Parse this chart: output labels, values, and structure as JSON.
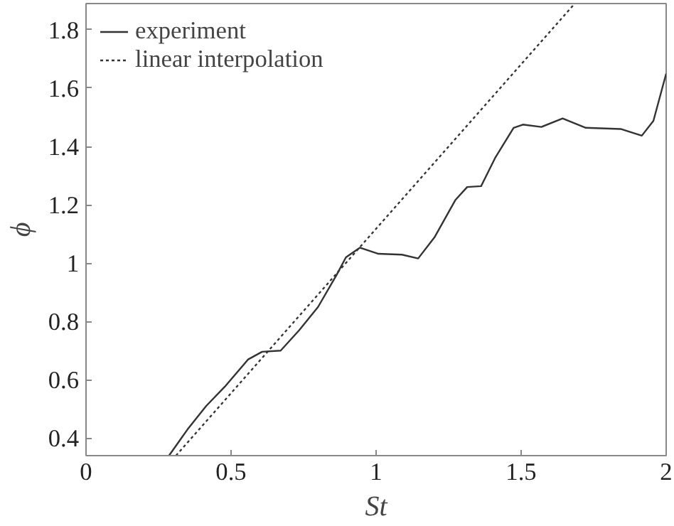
{
  "chart_data": {
    "type": "line",
    "xlabel": "St",
    "ylabel": "ϕ",
    "xlim": [
      0,
      2
    ],
    "ylim": [
      0.34,
      1.89
    ],
    "xticks": [
      0,
      0.5,
      1,
      1.5,
      2
    ],
    "yticks": [
      0.4,
      0.6,
      0.8,
      1,
      1.2,
      1.4,
      1.6,
      1.8
    ],
    "grid": false,
    "legend": "top left",
    "series": [
      {
        "name": "experiment",
        "color": "#333333",
        "line_style": "solid",
        "x": [
          0.286,
          0.35,
          0.414,
          0.478,
          0.559,
          0.607,
          0.671,
          0.735,
          0.8,
          0.864,
          0.896,
          0.944,
          1.008,
          1.089,
          1.145,
          1.201,
          1.273,
          1.314,
          1.362,
          1.41,
          1.474,
          1.506,
          1.57,
          1.643,
          1.723,
          1.843,
          1.916,
          1.956,
          2
        ],
        "values": [
          0.34,
          0.43,
          0.51,
          0.576,
          0.67,
          0.696,
          0.7,
          0.77,
          0.85,
          0.96,
          1.02,
          1.053,
          1.032,
          1.029,
          1.016,
          1.088,
          1.216,
          1.261,
          1.264,
          1.36,
          1.464,
          1.475,
          1.467,
          1.496,
          1.464,
          1.46,
          1.437,
          1.488,
          1.65
        ]
      },
      {
        "name": "linear interpolation",
        "color": "#333333",
        "line_style": "dotted",
        "x": [
          0.31,
          1.683
        ],
        "values": [
          0.34,
          1.888
        ]
      }
    ]
  }
}
